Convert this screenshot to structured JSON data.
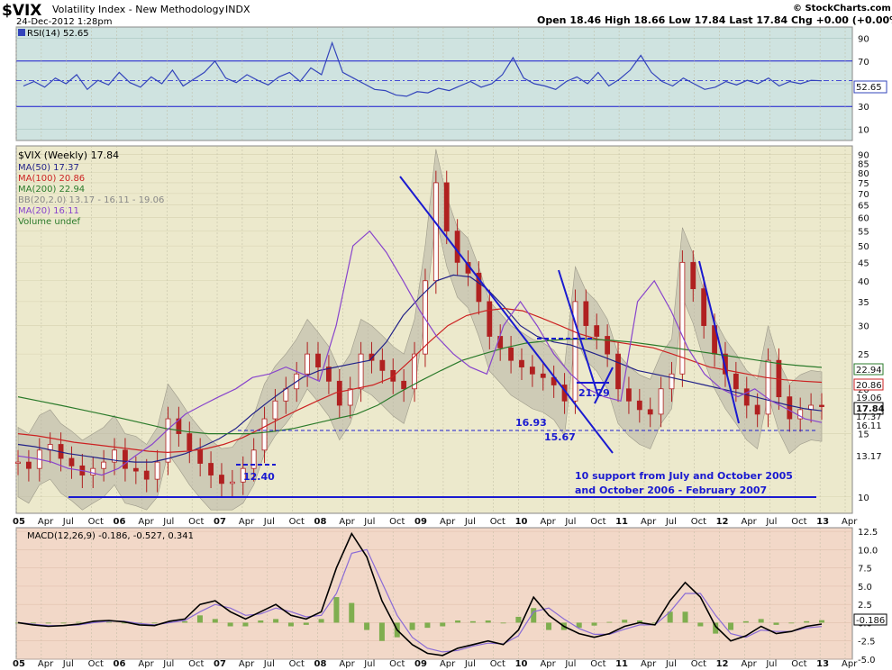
{
  "header": {
    "symbol": "$VIX",
    "name": "Volatility Index - New Methodology",
    "exchange": "INDX",
    "datetime": "24-Dec-2012 1:28pm",
    "brand": "© StockCharts.com",
    "quote_line": "Open 18.46  High 18.66  Low 17.84  Last 17.84  Chg +0.00 (+0.00%)"
  },
  "colors": {
    "rsi_bg": "#cfe3e0",
    "price_bg": "#ece9cc",
    "macd_bg": "#f2d8c8",
    "bollinger": "#b6b3a4",
    "candle": "#b02020",
    "ma50": "#222288",
    "ma100": "#cc2222",
    "ma200": "#2a7a2a",
    "ma20": "#8844cc",
    "trend": "#1a1ad0",
    "rsi": "#3344bb",
    "macd": "#000000",
    "signal": "#8a6bd6",
    "histogram": "#7fae4f"
  },
  "chart_data": [
    {
      "type": "line",
      "panel": "rsi",
      "title": "RSI(14) 52.65",
      "yticks": [
        10,
        30,
        50,
        70,
        90
      ],
      "ylim": [
        0,
        100
      ],
      "levels": [
        30,
        70
      ],
      "last_label": "52.65",
      "series": [
        {
          "name": "RSI(14)",
          "values": [
            48,
            52,
            47,
            55,
            50,
            58,
            45,
            53,
            49,
            60,
            51,
            47,
            56,
            50,
            62,
            48,
            54,
            60,
            70,
            55,
            51,
            58,
            53,
            49,
            56,
            60,
            52,
            64,
            58,
            86,
            60,
            55,
            50,
            45,
            44,
            40,
            39,
            43,
            42,
            46,
            44,
            48,
            52,
            47,
            50,
            58,
            73,
            55,
            50,
            48,
            45,
            52,
            56,
            50,
            60,
            48,
            54,
            62,
            75,
            60,
            52,
            48,
            55,
            50,
            45,
            47,
            52,
            49,
            53,
            50,
            55,
            48,
            52,
            50,
            53,
            52.65
          ]
        }
      ]
    },
    {
      "type": "line",
      "panel": "price",
      "title": "$VIX (Weekly) 17.84",
      "scale": "log",
      "ylim": [
        9,
        95
      ],
      "yticks": [
        10,
        15,
        20,
        25,
        30,
        35,
        40,
        45,
        50,
        55,
        60,
        65,
        70,
        75,
        80,
        85,
        90
      ],
      "xticks": [
        "05",
        "Apr",
        "Jul",
        "Oct",
        "06",
        "Apr",
        "Jul",
        "Oct",
        "07",
        "Apr",
        "Jul",
        "Oct",
        "08",
        "Apr",
        "Jul",
        "Oct",
        "09",
        "Apr",
        "Jul",
        "Oct",
        "10",
        "Apr",
        "Jul",
        "Oct",
        "11",
        "Apr",
        "Jul",
        "Oct",
        "12",
        "Apr",
        "Jul",
        "Oct",
        "13",
        "Apr"
      ],
      "price_series": {
        "name": "$VIX",
        "values": [
          12.5,
          12.0,
          13.5,
          14.0,
          12.8,
          12.2,
          11.5,
          12.0,
          12.5,
          13.5,
          12.0,
          11.8,
          11.2,
          12.5,
          16.5,
          15.0,
          13.5,
          12.4,
          11.5,
          10.9,
          11.0,
          12.0,
          13.5,
          16.5,
          18.5,
          20.0,
          22.0,
          25.0,
          23.0,
          21.0,
          18.0,
          20.0,
          25.0,
          24.0,
          22.5,
          21.0,
          20.0,
          25.0,
          40.0,
          75.0,
          55.0,
          45.0,
          42.0,
          35.0,
          28.0,
          26.0,
          24.0,
          23.0,
          22.0,
          21.5,
          20.5,
          18.5,
          35.0,
          30.0,
          28.0,
          25.0,
          20.0,
          18.5,
          17.5,
          17.0,
          20.0,
          22.0,
          45.0,
          38.0,
          30.0,
          25.0,
          22.0,
          20.0,
          18.0,
          17.0,
          24.0,
          19.0,
          16.5,
          17.5,
          18.0,
          17.84
        ]
      },
      "series": [
        {
          "name": "MA(50) 17.37",
          "values": [
            14,
            13.8,
            13.5,
            13.2,
            13.0,
            12.8,
            12.6,
            12.5,
            12.5,
            12.8,
            13.2,
            13.8,
            14.5,
            15.5,
            17.0,
            18.5,
            20.0,
            21.5,
            22.5,
            23.0,
            23.5,
            24.0,
            27.0,
            32.0,
            36.0,
            40.0,
            41.5,
            41.0,
            38.0,
            34.0,
            30.0,
            28.0,
            27.0,
            26.5,
            25.5,
            24.5,
            23.5,
            22.5,
            22.0,
            21.5,
            21.0,
            20.5,
            20.0,
            19.5,
            19.0,
            18.5,
            18.0,
            17.6,
            17.37
          ]
        },
        {
          "name": "MA(100) 20.86",
          "values": [
            15,
            14.8,
            14.5,
            14.2,
            14.0,
            13.8,
            13.6,
            13.4,
            13.3,
            13.4,
            13.6,
            14.0,
            14.6,
            15.5,
            16.5,
            17.5,
            18.5,
            19.5,
            20.0,
            20.5,
            21.5,
            24.0,
            27.0,
            30.0,
            32.0,
            33.0,
            33.5,
            33.0,
            31.5,
            30.0,
            28.5,
            27.5,
            27.0,
            26.5,
            26.0,
            25.0,
            24.0,
            23.0,
            22.5,
            22.0,
            21.5,
            21.2,
            21.0,
            20.86
          ]
        },
        {
          "name": "MA(200) 22.94",
          "values": [
            19,
            18.5,
            18.0,
            17.5,
            17.0,
            16.5,
            16.0,
            15.5,
            15.2,
            15.0,
            15.0,
            15.0,
            15.2,
            15.5,
            16.0,
            16.5,
            17.0,
            18.0,
            19.5,
            21.0,
            22.5,
            24.0,
            25.0,
            26.0,
            26.8,
            27.2,
            27.5,
            27.5,
            27.3,
            27.0,
            26.5,
            26.0,
            25.5,
            25.0,
            24.5,
            24.0,
            23.5,
            23.2,
            22.94
          ]
        },
        {
          "name": "MA(20) 16.11",
          "values": [
            13,
            12.8,
            12.5,
            12.0,
            11.8,
            11.5,
            12.0,
            13.0,
            14.0,
            15.5,
            17.0,
            18.0,
            19.0,
            20.0,
            21.5,
            22.0,
            23.0,
            22.0,
            21.0,
            30.0,
            50.0,
            55.0,
            48.0,
            40.0,
            33.0,
            28.0,
            25.0,
            23.0,
            22.0,
            30.0,
            35.0,
            30.0,
            25.0,
            22.0,
            20.0,
            19.0,
            18.5,
            35.0,
            40.0,
            33.0,
            26.0,
            22.0,
            20.0,
            19.0,
            20.0,
            18.5,
            17.5,
            16.5,
            16.11
          ]
        }
      ],
      "bollinger": "BB(20,2.0) 13.17 - 16.11 - 19.06",
      "volume": "Volume undef",
      "right_labels": [
        "22.94",
        "20.86",
        "19.06",
        "17.84",
        "17.37",
        "16.11",
        "13.17"
      ],
      "annotations": [
        "12.40",
        "16.93",
        "15.67",
        "21.29",
        "10 support from July and October 2005",
        "and October 2006  - February 2007"
      ]
    },
    {
      "type": "line",
      "panel": "macd",
      "title": "MACD(12,26,9) -0.186, -0.527, 0.341",
      "ylim": [
        -5,
        13
      ],
      "yticks": [
        -5.0,
        -2.5,
        0.0,
        2.5,
        5.0,
        7.5,
        10.0,
        12.5
      ],
      "ytick_labels": [
        "-5.0",
        "-2.5",
        "0.0",
        "2.5",
        "5.0",
        "7.5",
        "10.0",
        "12.5"
      ],
      "last_label": "-0.186",
      "series": [
        {
          "name": "MACD",
          "values": [
            0,
            -0.3,
            -0.5,
            -0.4,
            -0.2,
            0.2,
            0.3,
            0.1,
            -0.3,
            -0.4,
            0.2,
            0.5,
            2.5,
            3.0,
            1.5,
            0.5,
            1.5,
            2.5,
            1.0,
            0.5,
            1.5,
            7.5,
            12.2,
            9.0,
            3.0,
            -1.0,
            -3.0,
            -4.2,
            -4.5,
            -3.5,
            -3.0,
            -2.5,
            -3.0,
            -1.0,
            3.5,
            1.0,
            -0.5,
            -1.5,
            -2.0,
            -1.5,
            -0.5,
            0.0,
            -0.3,
            3.0,
            5.5,
            3.5,
            -0.5,
            -2.5,
            -1.8,
            -0.5,
            -1.5,
            -1.2,
            -0.5,
            -0.186
          ]
        },
        {
          "name": "Signal",
          "values": [
            0,
            -0.2,
            -0.4,
            -0.4,
            -0.3,
            0.0,
            0.2,
            0.2,
            -0.1,
            -0.3,
            0.0,
            0.3,
            1.5,
            2.5,
            2.0,
            1.0,
            1.2,
            2.0,
            1.5,
            0.8,
            1.0,
            4.0,
            9.5,
            10.0,
            5.5,
            1.0,
            -2.0,
            -3.5,
            -4.0,
            -3.8,
            -3.2,
            -2.8,
            -2.9,
            -1.8,
            1.5,
            2.0,
            0.5,
            -0.8,
            -1.6,
            -1.6,
            -0.9,
            -0.3,
            -0.3,
            1.5,
            4.0,
            4.0,
            1.0,
            -1.5,
            -2.0,
            -1.0,
            -1.2,
            -1.2,
            -0.7,
            -0.527
          ]
        },
        {
          "name": "Histogram",
          "values": [
            0,
            -0.1,
            -0.1,
            0.0,
            0.1,
            0.2,
            0.1,
            -0.1,
            -0.2,
            -0.1,
            0.2,
            0.2,
            1.0,
            0.5,
            -0.5,
            -0.5,
            0.3,
            0.5,
            -0.5,
            -0.3,
            0.5,
            3.5,
            2.7,
            -1.0,
            -2.5,
            -2.0,
            -1.0,
            -0.7,
            -0.5,
            0.3,
            0.2,
            0.3,
            -0.1,
            0.8,
            2.0,
            -1.0,
            -1.0,
            -0.7,
            -0.4,
            0.1,
            0.4,
            0.3,
            0.0,
            1.5,
            1.5,
            -0.5,
            -1.5,
            -1.0,
            0.2,
            0.5,
            -0.3,
            0.0,
            0.2,
            0.341
          ]
        }
      ]
    }
  ]
}
